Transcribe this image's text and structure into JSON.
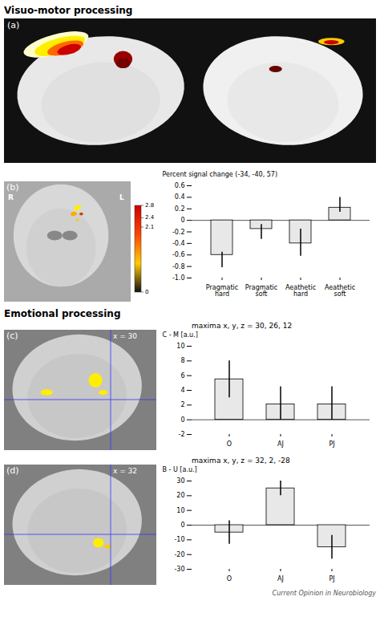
{
  "chart_data": [
    {
      "type": "bar",
      "categories": [
        "Pragmatic hard",
        "Pragmatic soft",
        "Aeathetic hard",
        "Aeathetic soft"
      ],
      "values": [
        -0.6,
        -0.15,
        -0.4,
        0.22
      ],
      "error_upper": [
        0.05,
        0.08,
        0.25,
        0.18
      ],
      "error_lower": [
        0.22,
        0.18,
        0.22,
        0.08
      ],
      "ylabel": "Percent signal change (-34, -40, 57)",
      "ylim": [
        -1.0,
        0.6
      ],
      "yticks": [
        {
          "value": -1.0,
          "label": "-1.0"
        },
        -0.8,
        -0.6,
        -0.4,
        -0.2,
        0,
        0.2,
        0.4,
        0.6
      ],
      "color": "#e8e8e8",
      "colorbar_range": [
        0,
        2.8
      ],
      "colorbar_ticks": [
        0,
        2.1,
        2.4,
        2.8
      ],
      "annotations": [
        "Visuo-motor processing",
        "(a)",
        "(b)",
        "R",
        "L"
      ]
    },
    {
      "type": "bar",
      "title": "maxima x, y, z = 30, 26, 12",
      "categories": [
        "O",
        "AJ",
        "PJ"
      ],
      "values": [
        5.5,
        2.1,
        2.1
      ],
      "error_upper": [
        2.5,
        2.4,
        2.4
      ],
      "error_lower": [
        2.5,
        2.1,
        2.1
      ],
      "ylabel": "C - M [a.u.]",
      "ylim": [
        -2,
        10
      ],
      "yticks": [
        -2,
        0,
        2,
        4,
        6,
        8,
        10
      ],
      "color": "#e8e8e8",
      "annotations": [
        "Emotional processing",
        "(c)",
        "x = 30"
      ]
    },
    {
      "type": "bar",
      "title": "maxima x, y, z = 32, 2, -28",
      "categories": [
        "O",
        "AJ",
        "PJ"
      ],
      "values": [
        -5.0,
        25.0,
        -15.0
      ],
      "error_upper": [
        8.0,
        5.0,
        8.0
      ],
      "error_lower": [
        8.0,
        5.0,
        8.0
      ],
      "ylabel": "B - U [a.u.]",
      "ylim": [
        -30,
        30
      ],
      "yticks": [
        -30,
        -20,
        -10,
        0,
        10,
        20,
        30
      ],
      "color": "#e8e8e8",
      "annotations": [
        "(d)",
        "x = 32",
        "Current Opinion in Neurobiology"
      ]
    }
  ]
}
